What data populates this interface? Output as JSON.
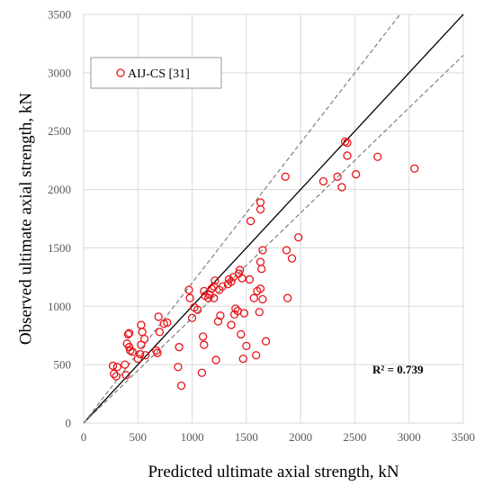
{
  "chart_data": {
    "type": "scatter",
    "xlabel": "Predicted ultimate axial strength, kN",
    "ylabel": "Observed ultimate axial strength, kN",
    "xlim": [
      0,
      3500
    ],
    "ylim": [
      0,
      3500
    ],
    "xticks": [
      0,
      500,
      1000,
      1500,
      2000,
      2500,
      3000,
      3500
    ],
    "yticks": [
      0,
      500,
      1000,
      1500,
      2000,
      2500,
      3000,
      3500
    ],
    "grid": true,
    "legend_position": "top-left",
    "annotation": "R² = 0.739",
    "reference_lines": [
      {
        "type": "solid",
        "slope": 1.0
      },
      {
        "type": "dashed",
        "slope": 1.2
      },
      {
        "type": "dashed",
        "slope": 0.9
      }
    ],
    "colors": {
      "marker": "#e8141b",
      "identity_line": "#000000",
      "bound_lines": "#808080",
      "grid": "#d9d9d9"
    },
    "series": [
      {
        "name": "AIJ-CS [31]",
        "points": [
          [
            270,
            490
          ],
          [
            280,
            420
          ],
          [
            300,
            400
          ],
          [
            310,
            480
          ],
          [
            380,
            500
          ],
          [
            390,
            410
          ],
          [
            400,
            680
          ],
          [
            410,
            760
          ],
          [
            420,
            770
          ],
          [
            420,
            650
          ],
          [
            430,
            620
          ],
          [
            450,
            610
          ],
          [
            500,
            550
          ],
          [
            520,
            590
          ],
          [
            530,
            670
          ],
          [
            530,
            840
          ],
          [
            540,
            780
          ],
          [
            560,
            720
          ],
          [
            570,
            580
          ],
          [
            670,
            620
          ],
          [
            680,
            600
          ],
          [
            690,
            910
          ],
          [
            700,
            780
          ],
          [
            740,
            850
          ],
          [
            770,
            860
          ],
          [
            870,
            480
          ],
          [
            880,
            650
          ],
          [
            900,
            320
          ],
          [
            970,
            1140
          ],
          [
            980,
            1070
          ],
          [
            1000,
            900
          ],
          [
            1020,
            990
          ],
          [
            1050,
            970
          ],
          [
            1090,
            430
          ],
          [
            1100,
            740
          ],
          [
            1110,
            670
          ],
          [
            1110,
            1130
          ],
          [
            1120,
            1090
          ],
          [
            1150,
            1070
          ],
          [
            1160,
            1100
          ],
          [
            1180,
            1150
          ],
          [
            1200,
            1070
          ],
          [
            1200,
            1170
          ],
          [
            1210,
            1220
          ],
          [
            1220,
            540
          ],
          [
            1240,
            870
          ],
          [
            1250,
            1140
          ],
          [
            1260,
            920
          ],
          [
            1280,
            1170
          ],
          [
            1330,
            1190
          ],
          [
            1340,
            1230
          ],
          [
            1360,
            1210
          ],
          [
            1360,
            840
          ],
          [
            1380,
            1250
          ],
          [
            1390,
            930
          ],
          [
            1400,
            980
          ],
          [
            1420,
            960
          ],
          [
            1430,
            1280
          ],
          [
            1440,
            1310
          ],
          [
            1450,
            760
          ],
          [
            1460,
            1240
          ],
          [
            1470,
            550
          ],
          [
            1480,
            940
          ],
          [
            1500,
            660
          ],
          [
            1530,
            1230
          ],
          [
            1540,
            1730
          ],
          [
            1570,
            1070
          ],
          [
            1590,
            580
          ],
          [
            1600,
            1130
          ],
          [
            1620,
            950
          ],
          [
            1630,
            1890
          ],
          [
            1630,
            1830
          ],
          [
            1630,
            1380
          ],
          [
            1630,
            1150
          ],
          [
            1640,
            1320
          ],
          [
            1650,
            1480
          ],
          [
            1650,
            1060
          ],
          [
            1680,
            700
          ],
          [
            1860,
            2110
          ],
          [
            1870,
            1480
          ],
          [
            1880,
            1070
          ],
          [
            1920,
            1410
          ],
          [
            1980,
            1590
          ],
          [
            2210,
            2070
          ],
          [
            2340,
            2110
          ],
          [
            2380,
            2020
          ],
          [
            2410,
            2410
          ],
          [
            2430,
            2400
          ],
          [
            2430,
            2290
          ],
          [
            2510,
            2130
          ],
          [
            2710,
            2280
          ],
          [
            3050,
            2180
          ]
        ]
      }
    ]
  }
}
